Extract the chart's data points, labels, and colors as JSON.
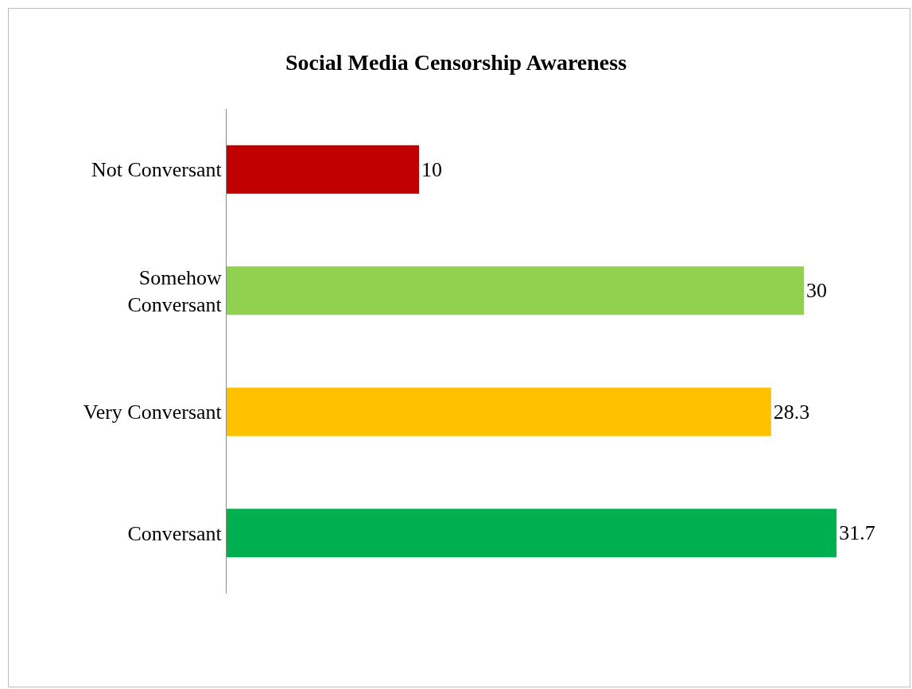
{
  "chart_data": {
    "type": "bar",
    "orientation": "horizontal",
    "title": "Social Media Censorship Awareness",
    "categories": [
      "Not Conversant",
      "Somehow Conversant",
      "Very Conversant",
      "Conversant"
    ],
    "values": [
      10,
      30,
      28.3,
      31.7
    ],
    "colors": [
      "#c00000",
      "#92d050",
      "#ffc000",
      "#00b050"
    ],
    "data_labels": true
  }
}
